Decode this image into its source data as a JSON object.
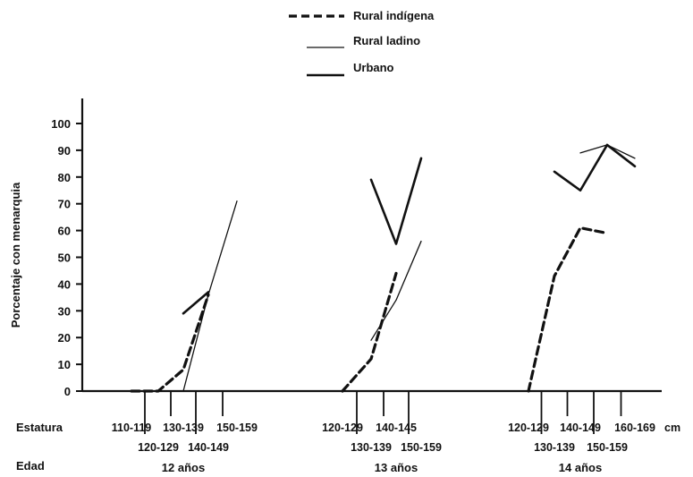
{
  "chart_data": {
    "type": "line",
    "title": "",
    "ylabel": "Porcentaje con menarquia",
    "ylim": [
      0,
      100
    ],
    "yticks": [
      0,
      10,
      20,
      30,
      40,
      50,
      60,
      70,
      80,
      90,
      100
    ],
    "xlabel": "",
    "row_labels": {
      "height": "Estatura",
      "age": "Edad"
    },
    "unit": "cm",
    "legend": {
      "position": "top-center",
      "entries": [
        {
          "name": "Rural indígena",
          "style": "dashed",
          "color": "#111111"
        },
        {
          "name": "Rural ladino",
          "style": "thin-solid",
          "color": "#111111"
        },
        {
          "name": "Urbano",
          "style": "thick-solid",
          "color": "#111111"
        }
      ]
    },
    "groups": [
      {
        "age": "12 años",
        "categories": [
          "110-119",
          "120-129",
          "130-139",
          "140-149",
          "150-159"
        ],
        "series": [
          {
            "name": "Rural indígena",
            "points": [
              [
                0,
                0
              ],
              [
                1,
                0
              ],
              [
                2,
                8
              ],
              [
                3,
                36
              ]
            ]
          },
          {
            "name": "Rural ladino",
            "points": [
              [
                1,
                0
              ],
              [
                2,
                0
              ],
              [
                3,
                36
              ],
              [
                4,
                71
              ]
            ]
          },
          {
            "name": "Urbano",
            "points": [
              [
                2,
                29
              ],
              [
                3,
                37
              ]
            ]
          }
        ]
      },
      {
        "age": "13 años",
        "categories": [
          "120-129",
          "130-139",
          "140-145",
          "150-159"
        ],
        "series": [
          {
            "name": "Rural indígena",
            "points": [
              [
                0,
                0
              ],
              [
                1,
                12
              ],
              [
                2,
                44
              ]
            ]
          },
          {
            "name": "Rural ladino",
            "points": [
              [
                1,
                19
              ],
              [
                2,
                34
              ],
              [
                3,
                56
              ]
            ]
          },
          {
            "name": "Urbano",
            "points": [
              [
                1,
                79
              ],
              [
                2,
                55
              ],
              [
                3,
                87
              ]
            ]
          }
        ]
      },
      {
        "age": "14 años",
        "categories": [
          "120-129",
          "130-139",
          "140-149",
          "150-159",
          "160-169"
        ],
        "series": [
          {
            "name": "Rural indígena",
            "points": [
              [
                0,
                0
              ],
              [
                1,
                43
              ],
              [
                2,
                61
              ],
              [
                3,
                59
              ]
            ]
          },
          {
            "name": "Rural ladino",
            "points": [
              [
                2,
                89
              ],
              [
                3,
                92
              ],
              [
                4,
                87
              ]
            ]
          },
          {
            "name": "Urbano",
            "points": [
              [
                1,
                82
              ],
              [
                2,
                75
              ],
              [
                3,
                92
              ],
              [
                4,
                84
              ]
            ]
          }
        ]
      }
    ]
  }
}
